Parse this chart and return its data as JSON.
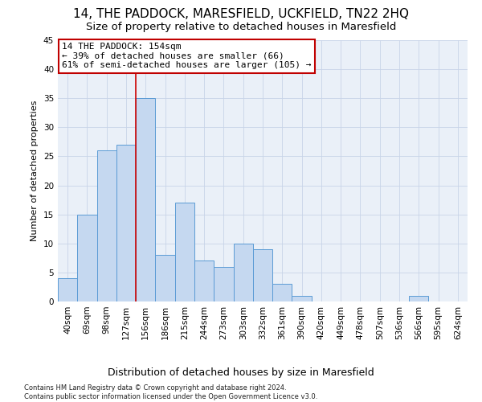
{
  "title": "14, THE PADDOCK, MARESFIELD, UCKFIELD, TN22 2HQ",
  "subtitle": "Size of property relative to detached houses in Maresfield",
  "xlabel": "Distribution of detached houses by size in Maresfield",
  "ylabel": "Number of detached properties",
  "categories": [
    "40sqm",
    "69sqm",
    "98sqm",
    "127sqm",
    "156sqm",
    "186sqm",
    "215sqm",
    "244sqm",
    "273sqm",
    "303sqm",
    "332sqm",
    "361sqm",
    "390sqm",
    "420sqm",
    "449sqm",
    "478sqm",
    "507sqm",
    "536sqm",
    "566sqm",
    "595sqm",
    "624sqm"
  ],
  "values": [
    4,
    15,
    26,
    27,
    35,
    8,
    17,
    7,
    6,
    10,
    9,
    3,
    1,
    0,
    0,
    0,
    0,
    0,
    1,
    0,
    0
  ],
  "bar_color": "#c5d8f0",
  "bar_edgecolor": "#5b9bd5",
  "redline_index": 4,
  "annotation_line1": "14 THE PADDOCK: 154sqm",
  "annotation_line2": "← 39% of detached houses are smaller (66)",
  "annotation_line3": "61% of semi-detached houses are larger (105) →",
  "annotation_box_color": "#ffffff",
  "annotation_box_edgecolor": "#c00000",
  "footer_line1": "Contains HM Land Registry data © Crown copyright and database right 2024.",
  "footer_line2": "Contains public sector information licensed under the Open Government Licence v3.0.",
  "ylim": [
    0,
    45
  ],
  "yticks": [
    0,
    5,
    10,
    15,
    20,
    25,
    30,
    35,
    40,
    45
  ],
  "background_color": "#ffffff",
  "plot_bg_color": "#eaf0f8",
  "grid_color": "#c8d4e8",
  "title_fontsize": 11,
  "subtitle_fontsize": 9.5,
  "xlabel_fontsize": 9,
  "ylabel_fontsize": 8,
  "tick_fontsize": 7.5,
  "annotation_fontsize": 8,
  "footer_fontsize": 6
}
